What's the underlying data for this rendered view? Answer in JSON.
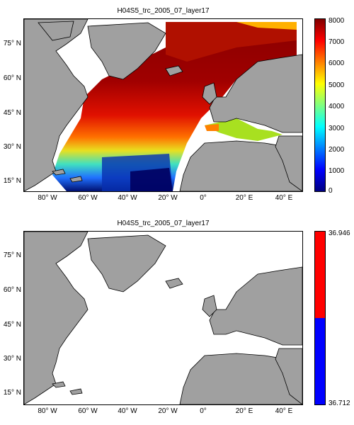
{
  "top_panel": {
    "title": "H04S5_trc_2005_07_layer17",
    "colorbar": {
      "min": 0,
      "max": 8000,
      "tick_labels": [
        "8000",
        "7000",
        "6000",
        "5000",
        "4000",
        "3000",
        "2000",
        "1000",
        "0"
      ],
      "colormap": "jet"
    }
  },
  "bottom_panel": {
    "title": "H04S5_trc_2005_07_layer17",
    "colorbar": {
      "tick_labels": [
        "36.946",
        "36.712"
      ],
      "colors": [
        "#ff0000",
        "#0000ff"
      ]
    }
  },
  "axes": {
    "y_labels": [
      "75° N",
      "60° N",
      "45° N",
      "30° N",
      "15° N"
    ],
    "x_labels": [
      "80° W",
      "60° W",
      "40° W",
      "20° W",
      "0°",
      "20° E",
      "40° E"
    ]
  },
  "colors": {
    "land": "#a0a0a0",
    "coast": "#000000",
    "ocean_nodata": "#ffffff"
  }
}
